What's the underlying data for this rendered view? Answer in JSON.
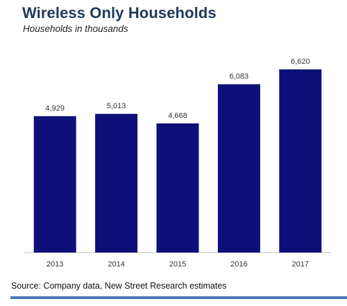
{
  "title": "Wireless Only Households",
  "subtitle": "Households in thousands",
  "source": "Source: Company data, New Street Research estimates",
  "colors": {
    "bar": "#0f0f7a",
    "title": "#1f3a5a",
    "rule": "#4a79b8"
  },
  "chart_data": {
    "type": "bar",
    "categories": [
      "2013",
      "2014",
      "2015",
      "2016",
      "2017"
    ],
    "values": [
      4929,
      5013,
      4668,
      6083,
      6620
    ],
    "value_labels": [
      "4,929",
      "5,013",
      "4,668",
      "6,083",
      "6,620"
    ],
    "title": "Wireless Only Households",
    "subtitle": "Households in thousands",
    "xlabel": "",
    "ylabel": "",
    "ylim": [
      0,
      7000
    ],
    "grid": false,
    "legend": "none"
  }
}
